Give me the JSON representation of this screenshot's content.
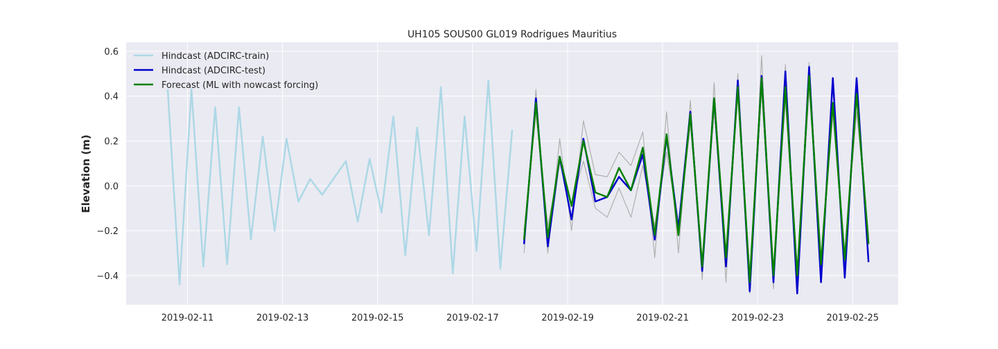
{
  "chart_data": {
    "type": "line",
    "title": "UH105 SOUS00 GL019 Rodrigues Mauritius",
    "ylabel": "Elevation (m)",
    "xlabel": "",
    "x_ticks": [
      "2019-02-11",
      "2019-02-13",
      "2019-02-15",
      "2019-02-17",
      "2019-02-19",
      "2019-02-21",
      "2019-02-23",
      "2019-02-25"
    ],
    "y_ticks": [
      "−0.4",
      "−0.2",
      "0.0",
      "0.2",
      "0.4",
      "0.6"
    ],
    "y_tick_values": [
      -0.4,
      -0.2,
      0.0,
      0.2,
      0.4,
      0.6
    ],
    "xlim": [
      "2019-02-09 17:00",
      "2019-02-25 23:00"
    ],
    "ylim": [
      -0.53,
      0.64
    ],
    "grid": true,
    "legend_position": "top-left",
    "series": [
      {
        "name": "Hindcast (ADCIRC-train)",
        "color": "#add8e6",
        "x": [
          "2019-02-10 14:00",
          "2019-02-10 20:00",
          "2019-02-11 02:00",
          "2019-02-11 08:00",
          "2019-02-11 14:00",
          "2019-02-11 20:00",
          "2019-02-12 02:00",
          "2019-02-12 08:00",
          "2019-02-12 14:00",
          "2019-02-12 20:00",
          "2019-02-13 02:00",
          "2019-02-13 08:00",
          "2019-02-13 14:00",
          "2019-02-13 20:00",
          "2019-02-14 08:00",
          "2019-02-14 14:00",
          "2019-02-14 20:00",
          "2019-02-15 02:00",
          "2019-02-15 08:00",
          "2019-02-15 14:00",
          "2019-02-15 20:00",
          "2019-02-16 02:00",
          "2019-02-16 08:00",
          "2019-02-16 14:00",
          "2019-02-16 20:00",
          "2019-02-17 02:00",
          "2019-02-17 08:00",
          "2019-02-17 14:00",
          "2019-02-17 20:00"
        ],
        "y": [
          0.43,
          -0.44,
          0.43,
          -0.36,
          0.35,
          -0.35,
          0.35,
          -0.24,
          0.22,
          -0.2,
          0.21,
          -0.07,
          0.03,
          -0.04,
          0.11,
          -0.16,
          0.12,
          -0.12,
          0.31,
          -0.31,
          0.26,
          -0.22,
          0.44,
          -0.39,
          0.31,
          -0.29,
          0.47,
          -0.37,
          0.25
        ]
      },
      {
        "name": "",
        "color": "#b0b0b0",
        "x": [
          "2019-02-18 02:00",
          "2019-02-18 08:00",
          "2019-02-18 14:00",
          "2019-02-18 20:00",
          "2019-02-19 02:00",
          "2019-02-19 08:00",
          "2019-02-19 14:00",
          "2019-02-19 20:00",
          "2019-02-20 02:00",
          "2019-02-20 08:00",
          "2019-02-20 14:00",
          "2019-02-20 20:00",
          "2019-02-21 02:00",
          "2019-02-21 08:00",
          "2019-02-21 14:00",
          "2019-02-21 20:00",
          "2019-02-22 02:00",
          "2019-02-22 08:00",
          "2019-02-22 14:00",
          "2019-02-22 20:00",
          "2019-02-23 02:00",
          "2019-02-23 08:00",
          "2019-02-23 14:00",
          "2019-02-23 20:00",
          "2019-02-24 02:00",
          "2019-02-24 08:00",
          "2019-02-24 14:00",
          "2019-02-24 20:00",
          "2019-02-25 02:00",
          "2019-02-25 08:00"
        ],
        "y": [
          -0.3,
          0.43,
          -0.3,
          0.21,
          -0.2,
          0.29,
          0.05,
          0.04,
          0.15,
          0.09,
          0.24,
          -0.32,
          0.33,
          -0.3,
          0.38,
          -0.42,
          0.46,
          -0.43,
          0.5,
          -0.48,
          0.58,
          -0.46,
          0.54,
          -0.48,
          0.55,
          -0.43,
          0.48,
          -0.41,
          0.47,
          -0.33
        ]
      },
      {
        "name": "",
        "color": "#b0b0b0",
        "x": [
          "2019-02-18 02:00",
          "2019-02-18 08:00",
          "2019-02-18 14:00",
          "2019-02-18 20:00",
          "2019-02-19 02:00",
          "2019-02-19 08:00",
          "2019-02-19 14:00",
          "2019-02-19 20:00",
          "2019-02-20 02:00",
          "2019-02-20 08:00",
          "2019-02-20 14:00",
          "2019-02-20 20:00",
          "2019-02-21 02:00",
          "2019-02-21 08:00",
          "2019-02-21 14:00",
          "2019-02-21 20:00",
          "2019-02-22 02:00",
          "2019-02-22 08:00",
          "2019-02-22 14:00",
          "2019-02-22 20:00",
          "2019-02-23 02:00",
          "2019-02-23 08:00",
          "2019-02-23 14:00",
          "2019-02-23 20:00",
          "2019-02-24 02:00",
          "2019-02-24 08:00",
          "2019-02-24 14:00",
          "2019-02-24 20:00",
          "2019-02-25 02:00",
          "2019-02-25 08:00"
        ],
        "y": [
          -0.2,
          0.32,
          -0.18,
          0.1,
          -0.08,
          0.11,
          -0.1,
          -0.14,
          -0.01,
          -0.14,
          0.09,
          -0.18,
          0.15,
          -0.18,
          0.27,
          -0.33,
          0.33,
          -0.3,
          0.4,
          -0.38,
          0.42,
          -0.37,
          0.38,
          -0.41,
          0.43,
          -0.33,
          0.32,
          -0.31,
          0.33,
          -0.22
        ]
      },
      {
        "name": "Hindcast (ADCIRC-test)",
        "color": "#0000cd",
        "x": [
          "2019-02-18 02:00",
          "2019-02-18 08:00",
          "2019-02-18 14:00",
          "2019-02-18 20:00",
          "2019-02-19 02:00",
          "2019-02-19 08:00",
          "2019-02-19 14:00",
          "2019-02-19 20:00",
          "2019-02-20 02:00",
          "2019-02-20 08:00",
          "2019-02-20 14:00",
          "2019-02-20 20:00",
          "2019-02-21 02:00",
          "2019-02-21 08:00",
          "2019-02-21 14:00",
          "2019-02-21 20:00",
          "2019-02-22 02:00",
          "2019-02-22 08:00",
          "2019-02-22 14:00",
          "2019-02-22 20:00",
          "2019-02-23 02:00",
          "2019-02-23 08:00",
          "2019-02-23 14:00",
          "2019-02-23 20:00",
          "2019-02-24 02:00",
          "2019-02-24 08:00",
          "2019-02-24 14:00",
          "2019-02-24 20:00",
          "2019-02-25 02:00",
          "2019-02-25 08:00"
        ],
        "y": [
          -0.26,
          0.39,
          -0.27,
          0.13,
          -0.15,
          0.21,
          -0.07,
          -0.05,
          0.04,
          -0.02,
          0.14,
          -0.24,
          0.22,
          -0.19,
          0.33,
          -0.38,
          0.39,
          -0.36,
          0.47,
          -0.47,
          0.49,
          -0.43,
          0.51,
          -0.48,
          0.53,
          -0.43,
          0.48,
          -0.41,
          0.48,
          -0.34
        ]
      },
      {
        "name": "Forecast (ML with nowcast forcing)",
        "color": "#008000",
        "x": [
          "2019-02-18 02:00",
          "2019-02-18 08:00",
          "2019-02-18 14:00",
          "2019-02-18 20:00",
          "2019-02-19 02:00",
          "2019-02-19 08:00",
          "2019-02-19 14:00",
          "2019-02-19 20:00",
          "2019-02-20 02:00",
          "2019-02-20 08:00",
          "2019-02-20 14:00",
          "2019-02-20 20:00",
          "2019-02-21 02:00",
          "2019-02-21 08:00",
          "2019-02-21 14:00",
          "2019-02-21 20:00",
          "2019-02-22 02:00",
          "2019-02-22 08:00",
          "2019-02-22 14:00",
          "2019-02-22 20:00",
          "2019-02-23 02:00",
          "2019-02-23 08:00",
          "2019-02-23 14:00",
          "2019-02-23 20:00",
          "2019-02-24 02:00",
          "2019-02-24 08:00",
          "2019-02-24 14:00",
          "2019-02-24 20:00",
          "2019-02-25 02:00",
          "2019-02-25 08:00"
        ],
        "y": [
          -0.24,
          0.37,
          -0.23,
          0.13,
          -0.09,
          0.2,
          -0.03,
          -0.05,
          0.08,
          -0.02,
          0.17,
          -0.22,
          0.23,
          -0.22,
          0.32,
          -0.36,
          0.39,
          -0.32,
          0.44,
          -0.43,
          0.48,
          -0.4,
          0.44,
          -0.4,
          0.49,
          -0.35,
          0.37,
          -0.33,
          0.41,
          -0.26
        ]
      }
    ]
  }
}
